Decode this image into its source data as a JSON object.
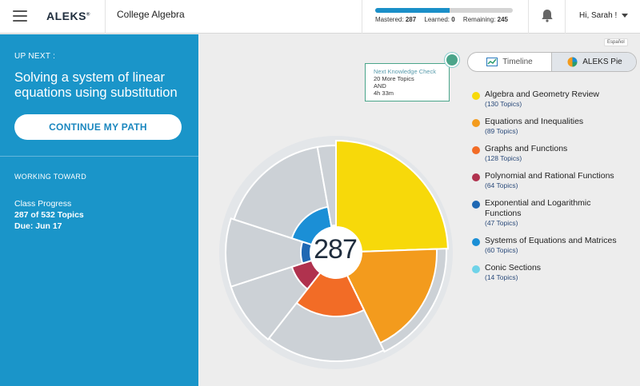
{
  "header": {
    "logo": "ALEKS",
    "logo_mark": "®",
    "course_title": "College Algebra",
    "progress": {
      "mastered_label": "Mastered:",
      "mastered": "287",
      "learned_label": "Learned:",
      "learned": "0",
      "remaining_label": "Remaining:",
      "remaining": "245",
      "mastered_fraction": 0.54
    },
    "user_greeting": "Hi, Sarah !"
  },
  "left_panel": {
    "up_next_label": "UP NEXT :",
    "topic_title": "Solving a system of linear equations using substitution",
    "continue_button": "CONTINUE MY PATH",
    "working_toward_label": "WORKING TOWARD",
    "class_progress_label": "Class Progress",
    "topics_progress": "287 of 532 Topics",
    "due": "Due: Jun 17"
  },
  "main": {
    "language_link": "Español",
    "toggle": {
      "timeline_label": "Timeline",
      "pie_label": "ALEKS Pie",
      "selected": "ALEKS Pie"
    },
    "knowledge_check": {
      "title": "Next Knowledge Check",
      "line1": "20 More Topics",
      "line2": "AND",
      "line3": "4h 33m"
    },
    "pie_center_value": "287"
  },
  "legend": [
    {
      "name": "Algebra and Geometry Review",
      "count": "(130 Topics)",
      "color": "#f7d90a"
    },
    {
      "name": "Equations and Inequalities",
      "count": "(89 Topics)",
      "color": "#f39b1d"
    },
    {
      "name": "Graphs and Functions",
      "count": "(128 Topics)",
      "color": "#f26c26"
    },
    {
      "name": "Polynomial and Rational Functions",
      "count": "(64 Topics)",
      "color": "#b0324e"
    },
    {
      "name": "Exponential and Logarithmic Functions",
      "count": "(47 Topics)",
      "color": "#1f68b3"
    },
    {
      "name": "Systems of Equations and Matrices",
      "count": "(60 Topics)",
      "color": "#1b8fd6"
    },
    {
      "name": "Conic Sections",
      "count": "(14 Topics)",
      "color": "#6fd3e8"
    }
  ],
  "colors": {
    "accent": "#1a95c9",
    "pie_gray": "#ccd1d6",
    "pie_outline": "#ffffff"
  }
}
